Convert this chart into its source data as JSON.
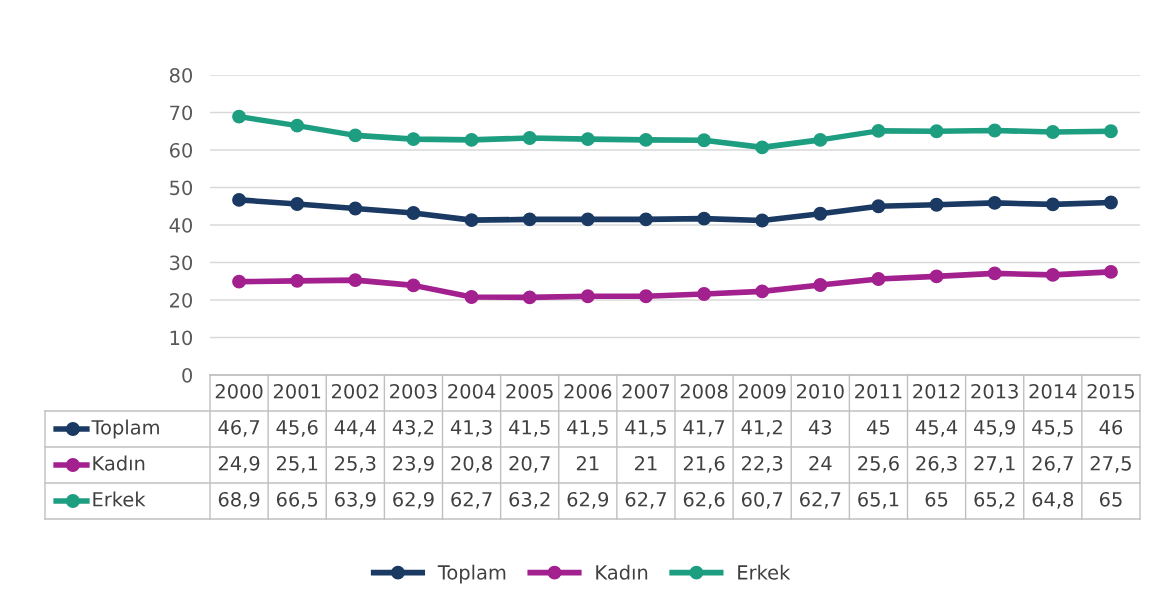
{
  "chart_data": {
    "type": "line",
    "categories": [
      "2000",
      "2001",
      "2002",
      "2003",
      "2004",
      "2005",
      "2006",
      "2007",
      "2008",
      "2009",
      "2010",
      "2011",
      "2012",
      "2013",
      "2014",
      "2015"
    ],
    "series": [
      {
        "name": "Toplam",
        "color": "#1b3a63",
        "values": [
          46.7,
          45.6,
          44.4,
          43.2,
          41.3,
          41.5,
          41.5,
          41.5,
          41.7,
          41.2,
          43,
          45,
          45.4,
          45.9,
          45.5,
          46
        ],
        "value_labels": [
          "46,7",
          "45,6",
          "44,4",
          "43,2",
          "41,3",
          "41,5",
          "41,5",
          "41,5",
          "41,7",
          "41,2",
          "43",
          "45",
          "45,4",
          "45,9",
          "45,5",
          "46"
        ]
      },
      {
        "name": "Kadın",
        "color": "#a3208f",
        "values": [
          24.9,
          25.1,
          25.3,
          23.9,
          20.8,
          20.7,
          21,
          21,
          21.6,
          22.3,
          24,
          25.6,
          26.3,
          27.1,
          26.7,
          27.5
        ],
        "value_labels": [
          "24,9",
          "25,1",
          "25,3",
          "23,9",
          "20,8",
          "20,7",
          "21",
          "21",
          "21,6",
          "22,3",
          "24",
          "25,6",
          "26,3",
          "27,1",
          "26,7",
          "27,5"
        ]
      },
      {
        "name": "Erkek",
        "color": "#1e9e80",
        "values": [
          68.9,
          66.5,
          63.9,
          62.9,
          62.7,
          63.2,
          62.9,
          62.7,
          62.6,
          60.7,
          62.7,
          65.1,
          65,
          65.2,
          64.8,
          65
        ],
        "value_labels": [
          "68,9",
          "66,5",
          "63,9",
          "62,9",
          "62,7",
          "63,2",
          "62,9",
          "62,7",
          "62,6",
          "60,7",
          "62,7",
          "65,1",
          "65",
          "65,2",
          "64,8",
          "65"
        ]
      }
    ],
    "ylim": [
      0,
      80
    ],
    "yticks": [
      0,
      10,
      20,
      30,
      40,
      50,
      60,
      70,
      80
    ],
    "grid": "y",
    "legend": "bottom",
    "marker": "circle",
    "line_style": "solid"
  }
}
